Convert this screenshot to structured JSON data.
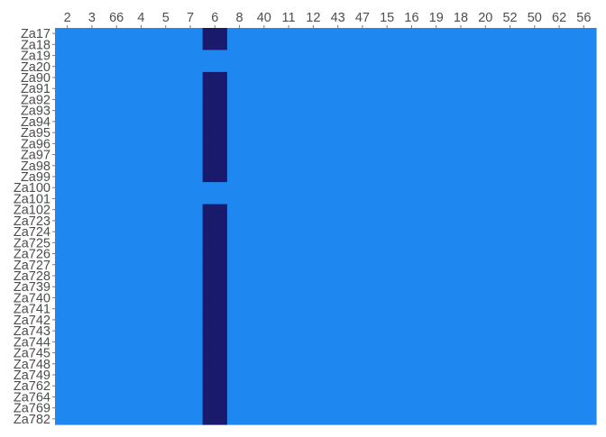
{
  "chart_data": {
    "type": "heatmap",
    "title": "",
    "xlabel": "",
    "ylabel": "",
    "x_axis_position": "top",
    "columns": [
      "2",
      "3",
      "66",
      "4",
      "5",
      "7",
      "6",
      "8",
      "40",
      "11",
      "12",
      "43",
      "47",
      "15",
      "16",
      "19",
      "18",
      "20",
      "52",
      "50",
      "62",
      "56"
    ],
    "rows": [
      "Za17",
      "Za18",
      "Za19",
      "Za20",
      "Za90",
      "Za91",
      "Za92",
      "Za93",
      "Za94",
      "Za95",
      "Za96",
      "Za97",
      "Za98",
      "Za99",
      "Za100",
      "Za101",
      "Za102",
      "Za723",
      "Za724",
      "Za725",
      "Za726",
      "Za727",
      "Za728",
      "Za739",
      "Za740",
      "Za741",
      "Za742",
      "Za743",
      "Za744",
      "Za745",
      "Za748",
      "Za749",
      "Za762",
      "Za764",
      "Za769",
      "Za782"
    ],
    "levels": [
      "low",
      "high"
    ],
    "colors": {
      "low": "#1e88f0",
      "high": "#1a1a6c"
    },
    "highlight_column": "6",
    "highlight_rows": [
      "Za17",
      "Za18",
      "Za90",
      "Za91",
      "Za92",
      "Za93",
      "Za94",
      "Za95",
      "Za96",
      "Za97",
      "Za98",
      "Za99",
      "Za102",
      "Za723",
      "Za724",
      "Za725",
      "Za726",
      "Za727",
      "Za728",
      "Za739",
      "Za740",
      "Za741",
      "Za742",
      "Za743",
      "Za744",
      "Za745",
      "Za748",
      "Za749",
      "Za762",
      "Za764",
      "Za769",
      "Za782"
    ],
    "legend": "none",
    "grid": false
  }
}
